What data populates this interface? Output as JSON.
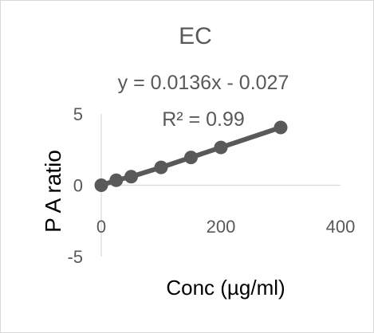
{
  "chart_data": {
    "type": "scatter",
    "title": "EC",
    "xlabel": "Conc (µg/ml)",
    "ylabel": "P A ratio",
    "xlim": [
      0,
      400
    ],
    "ylim": [
      -5,
      5
    ],
    "xticks": [
      0,
      200,
      400
    ],
    "yticks": [
      5,
      0,
      -5
    ],
    "grid": false,
    "trendline": {
      "equation": "y = 0.0136x  - 0.027",
      "r_squared": "R² = 0.99",
      "slope": 0.0136,
      "intercept": -0.027
    },
    "series": [
      {
        "x": [
          0,
          25,
          50,
          100,
          150,
          200,
          300
        ],
        "y": [
          0,
          0.35,
          0.6,
          1.25,
          1.95,
          2.65,
          4.05
        ]
      }
    ],
    "colors": {
      "series": "#595959",
      "axis": "#d9d9d9",
      "text": "#595959"
    }
  }
}
